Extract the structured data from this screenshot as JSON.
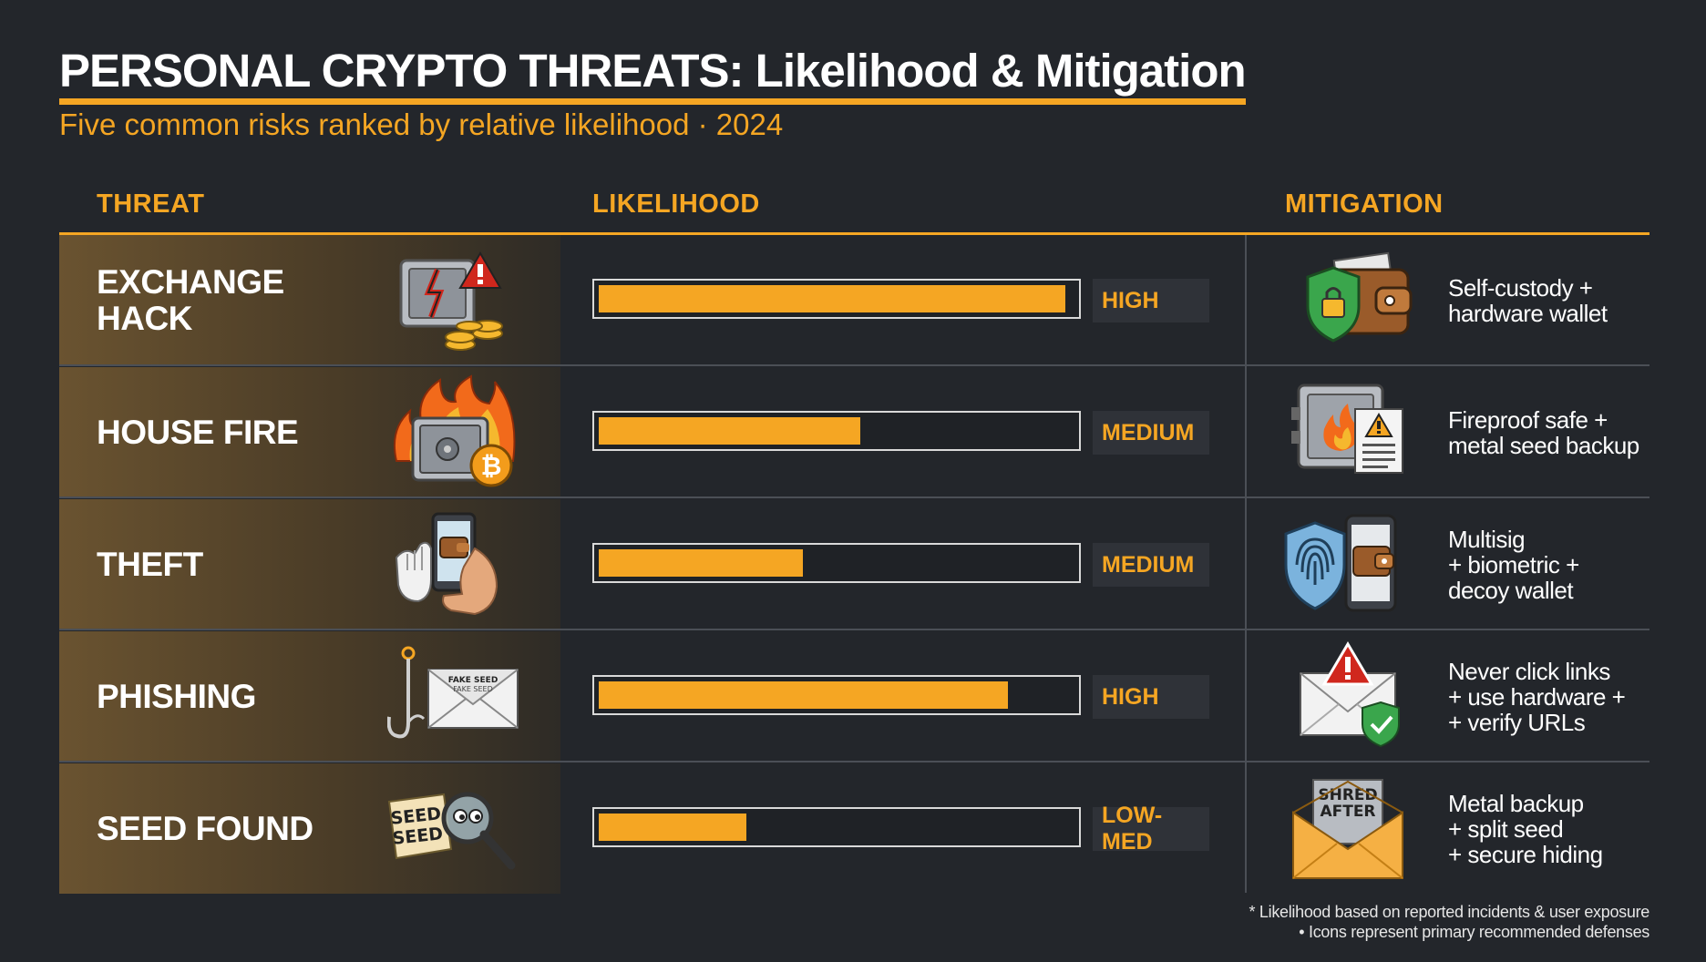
{
  "header": {
    "title": "PERSONAL CRYPTO THREATS: Likelihood & Mitigation",
    "subtitle": "Five common risks ranked by relative likelihood · 2024"
  },
  "columns": {
    "threat": "THREAT",
    "likelihood": "LIKELIHOOD",
    "mitigation": "MITIGATION"
  },
  "colors": {
    "accent": "#f5a623",
    "background": "#23262b",
    "panel": "#6a5330",
    "level_box": "#2f3238"
  },
  "rows": [
    {
      "threat_lines": [
        "EXCHANGE",
        "HACK"
      ],
      "threat_icon": "vault-hack-icon",
      "level": "HIGH",
      "mitigation_icon": "wallet-shield-icon",
      "mitigation_lines": [
        "Self-custody +",
        "hardware wallet"
      ]
    },
    {
      "threat_lines": [
        "HOUSE FIRE"
      ],
      "threat_icon": "burning-safe-icon",
      "level": "MEDIUM",
      "mitigation_icon": "fireproof-safe-icon",
      "mitigation_lines": [
        "Fireproof safe +",
        "metal seed backup"
      ]
    },
    {
      "threat_lines": [
        "THEFT"
      ],
      "threat_icon": "phone-grab-icon",
      "level": "MEDIUM",
      "mitigation_icon": "fingerprint-phone-icon",
      "mitigation_lines": [
        "Multisig",
        "+ biometric +",
        "decoy wallet"
      ]
    },
    {
      "threat_lines": [
        "PHISHING"
      ],
      "threat_icon": "hook-email-icon",
      "level": "HIGH",
      "mitigation_icon": "verified-email-icon",
      "mitigation_lines": [
        "Never click links",
        "+ use hardware +",
        "+ verify URLs"
      ]
    },
    {
      "threat_lines": [
        "SEED FOUND"
      ],
      "threat_icon": "seed-magnifier-icon",
      "level": "LOW-MED",
      "mitigation_icon": "shred-envelope-icon",
      "mitigation_lines": [
        "Metal backup",
        "+ split seed",
        "+ secure hiding"
      ]
    }
  ],
  "icon_text": {
    "phishing_paper": [
      "FAKE SEED",
      "FAKE SEED"
    ],
    "seed_paper": [
      "SEED",
      "SEED"
    ],
    "shred_paper": [
      "SHRED",
      "AFTER"
    ]
  },
  "footnote": [
    "* Likelihood based on reported incidents & user exposure",
    "• Icons represent primary recommended defenses"
  ],
  "chart_data": {
    "type": "bar",
    "orientation": "horizontal",
    "title": "PERSONAL CRYPTO THREATS: Likelihood & Mitigation",
    "subtitle": "Five common risks ranked by relative likelihood · 2024",
    "categories": [
      "EXCHANGE HACK",
      "HOUSE FIRE",
      "THEFT",
      "PHISHING",
      "SEED FOUND"
    ],
    "values": [
      0.98,
      0.55,
      0.43,
      0.86,
      0.31
    ],
    "labels": [
      "HIGH",
      "MEDIUM",
      "MEDIUM",
      "HIGH",
      "LOW-MED"
    ],
    "xlim": [
      0,
      1
    ],
    "grid": false
  }
}
